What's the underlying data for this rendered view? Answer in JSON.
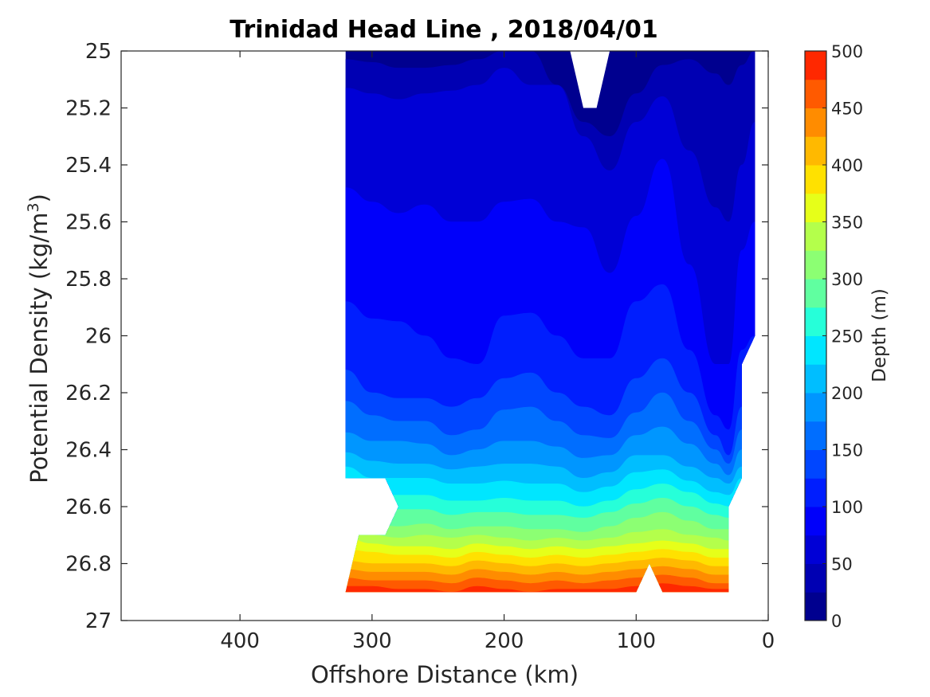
{
  "chart_data": {
    "type": "heatmap",
    "subtype": "filled-contour",
    "title": "Trinidad Head Line , 2018/04/01",
    "xlabel": "Offshore Distance (km)",
    "ylabel_main": "Potential Density (kg/m",
    "ylabel_sup": "3",
    "ylabel_close": ")",
    "colorbar_label": "Depth (m)",
    "x_axis": {
      "range": [
        490,
        0
      ],
      "reversed": true,
      "ticks": [
        400,
        300,
        200,
        100,
        0
      ],
      "tick_labels": [
        "400",
        "300",
        "200",
        "100",
        "0"
      ]
    },
    "y_axis": {
      "range": [
        25,
        27
      ],
      "reversed": true,
      "ticks": [
        25,
        25.2,
        25.4,
        25.6,
        25.8,
        26,
        26.2,
        26.4,
        26.6,
        26.8,
        27
      ],
      "tick_labels": [
        "25",
        "25.2",
        "25.4",
        "25.6",
        "25.8",
        "26",
        "26.2",
        "26.4",
        "26.6",
        "26.8",
        "27"
      ]
    },
    "colorbar": {
      "range": [
        0,
        500
      ],
      "ticks": [
        0,
        50,
        100,
        150,
        200,
        250,
        300,
        350,
        400,
        450,
        500
      ],
      "tick_labels": [
        "0",
        "50",
        "100",
        "150",
        "200",
        "250",
        "300",
        "350",
        "400",
        "450",
        "500"
      ],
      "levels": [
        0,
        25,
        50,
        75,
        100,
        125,
        150,
        175,
        200,
        225,
        250,
        275,
        300,
        325,
        350,
        375,
        400,
        425,
        450,
        475,
        500
      ],
      "colors": [
        "#00008f",
        "#0000b3",
        "#0000d6",
        "#0000fa",
        "#001efe",
        "#0046ff",
        "#006eff",
        "#0096ff",
        "#00beff",
        "#00e6ff",
        "#26ffd9",
        "#60ffa0",
        "#8cff73",
        "#b4ff4b",
        "#e6ff19",
        "#ffe100",
        "#ffb900",
        "#ff8c00",
        "#ff5a00",
        "#ff2800",
        "#c80000"
      ]
    },
    "x_stations_km": [
      320,
      300,
      280,
      260,
      240,
      220,
      200,
      180,
      160,
      140,
      120,
      100,
      80,
      60,
      40,
      30,
      20,
      10
    ],
    "contour_isolines_depth_m": [
      {
        "level": 25,
        "y": [
          25.03,
          25.04,
          25.06,
          25.06,
          25.05,
          25.03,
          25.0,
          25.0,
          25.12,
          25.25,
          25.3,
          25.15,
          25.05,
          25.03,
          25.08,
          25.12,
          25.05,
          25.0
        ]
      },
      {
        "level": 50,
        "y": [
          25.13,
          25.15,
          25.17,
          25.15,
          25.14,
          25.12,
          25.06,
          25.12,
          25.12,
          25.3,
          25.42,
          25.25,
          25.16,
          25.35,
          25.55,
          25.6,
          25.4,
          25.25
        ]
      },
      {
        "level": 75,
        "y": [
          25.48,
          25.53,
          25.57,
          25.54,
          25.6,
          25.6,
          25.53,
          25.52,
          25.6,
          25.62,
          25.78,
          25.58,
          25.38,
          25.75,
          26.1,
          26.1,
          25.7,
          25.6
        ]
      },
      {
        "level": 100,
        "y": [
          25.88,
          25.94,
          25.95,
          26.0,
          26.08,
          26.1,
          25.93,
          25.92,
          26.0,
          26.08,
          26.08,
          25.88,
          25.82,
          26.05,
          26.28,
          26.33,
          26.05,
          26.0
        ]
      },
      {
        "level": 125,
        "y": [
          26.12,
          26.2,
          26.22,
          26.22,
          26.25,
          26.22,
          26.15,
          26.13,
          26.2,
          26.25,
          26.28,
          26.15,
          26.08,
          26.2,
          26.35,
          26.42,
          26.25,
          26.2
        ]
      },
      {
        "level": 150,
        "y": [
          26.23,
          26.28,
          26.3,
          26.3,
          26.35,
          26.33,
          26.26,
          26.25,
          26.3,
          26.35,
          26.36,
          26.27,
          26.2,
          26.3,
          26.4,
          26.45,
          26.33,
          26.3
        ]
      },
      {
        "level": 175,
        "y": [
          26.34,
          26.37,
          26.37,
          26.38,
          26.42,
          26.4,
          26.37,
          26.37,
          26.39,
          26.43,
          26.42,
          26.35,
          26.32,
          26.38,
          26.45,
          26.49,
          26.4,
          26.38
        ]
      },
      {
        "level": 200,
        "y": [
          26.41,
          26.44,
          26.45,
          26.45,
          26.47,
          26.46,
          26.45,
          26.45,
          26.46,
          26.5,
          26.48,
          26.42,
          26.42,
          26.46,
          26.5,
          26.52,
          26.46,
          26.45
        ]
      },
      {
        "level": 225,
        "y": [
          26.46,
          26.5,
          26.5,
          26.5,
          26.52,
          26.52,
          26.51,
          26.52,
          26.52,
          26.55,
          26.53,
          26.48,
          26.47,
          26.51,
          26.55,
          26.56,
          26.5,
          26.5
        ]
      },
      {
        "level": 250,
        "y": [
          26.5,
          26.56,
          26.56,
          26.56,
          26.58,
          26.58,
          26.57,
          26.58,
          26.58,
          26.6,
          26.58,
          26.54,
          26.52,
          26.55,
          26.59,
          26.6,
          26.56,
          26.55
        ]
      },
      {
        "level": 275,
        "y": [
          26.56,
          26.61,
          26.61,
          26.61,
          26.63,
          26.62,
          26.62,
          26.63,
          26.63,
          26.64,
          26.62,
          26.59,
          26.57,
          26.6,
          26.63,
          26.64,
          26.6,
          26.6
        ]
      },
      {
        "level": 300,
        "y": [
          26.62,
          26.66,
          26.67,
          26.66,
          26.68,
          26.67,
          26.67,
          26.68,
          26.68,
          26.69,
          26.67,
          26.64,
          26.62,
          26.65,
          26.68,
          26.68,
          26.65,
          26.65
        ]
      },
      {
        "level": 325,
        "y": [
          26.67,
          26.7,
          26.71,
          26.7,
          26.71,
          26.7,
          26.71,
          26.72,
          26.71,
          26.72,
          26.71,
          26.69,
          26.68,
          26.7,
          26.71,
          26.72,
          26.7,
          26.7
        ]
      },
      {
        "level": 350,
        "y": [
          26.71,
          26.73,
          26.74,
          26.74,
          26.75,
          26.73,
          26.74,
          26.75,
          26.74,
          26.75,
          26.74,
          26.73,
          26.72,
          26.73,
          26.75,
          26.75,
          26.73,
          26.73
        ]
      },
      {
        "level": 375,
        "y": [
          26.75,
          26.76,
          26.77,
          26.77,
          26.78,
          26.76,
          26.77,
          26.78,
          26.77,
          26.78,
          26.77,
          26.76,
          26.75,
          26.76,
          26.78,
          26.78,
          26.76,
          26.76
        ]
      },
      {
        "level": 400,
        "y": [
          26.79,
          26.8,
          26.8,
          26.8,
          26.81,
          26.79,
          26.8,
          26.81,
          26.8,
          26.81,
          26.8,
          26.79,
          26.78,
          26.79,
          26.81,
          26.81,
          26.79,
          26.79
        ]
      },
      {
        "level": 425,
        "y": [
          26.82,
          26.83,
          26.83,
          26.83,
          26.84,
          26.82,
          26.83,
          26.84,
          26.83,
          26.84,
          26.83,
          26.82,
          26.81,
          26.82,
          26.84,
          26.84,
          26.82,
          26.82
        ]
      },
      {
        "level": 450,
        "y": [
          26.85,
          26.86,
          26.86,
          26.86,
          26.87,
          26.85,
          26.86,
          26.87,
          26.86,
          26.87,
          26.86,
          26.85,
          26.84,
          26.85,
          26.87,
          26.87,
          26.85,
          26.85
        ]
      },
      {
        "level": 475,
        "y": [
          26.88,
          26.88,
          26.89,
          26.89,
          26.9,
          26.88,
          26.89,
          26.9,
          26.89,
          26.89,
          26.89,
          26.88,
          26.87,
          26.88,
          26.89,
          26.89,
          26.88,
          26.88
        ]
      }
    ],
    "data_polygon": [
      [
        320,
        25.0
      ],
      [
        150,
        25.0
      ],
      [
        140,
        25.2
      ],
      [
        130,
        25.2
      ],
      [
        120,
        25.0
      ],
      [
        10,
        25.0
      ],
      [
        10,
        26.0
      ],
      [
        20,
        26.1
      ],
      [
        20,
        26.5
      ],
      [
        30,
        26.6
      ],
      [
        30,
        26.9
      ],
      [
        80,
        26.9
      ],
      [
        90,
        26.8
      ],
      [
        100,
        26.9
      ],
      [
        320,
        26.9
      ],
      [
        310,
        26.7
      ],
      [
        290,
        26.7
      ],
      [
        280,
        26.6
      ],
      [
        290,
        26.5
      ],
      [
        320,
        26.5
      ]
    ],
    "colorbar_placement": "right",
    "grid": false
  }
}
